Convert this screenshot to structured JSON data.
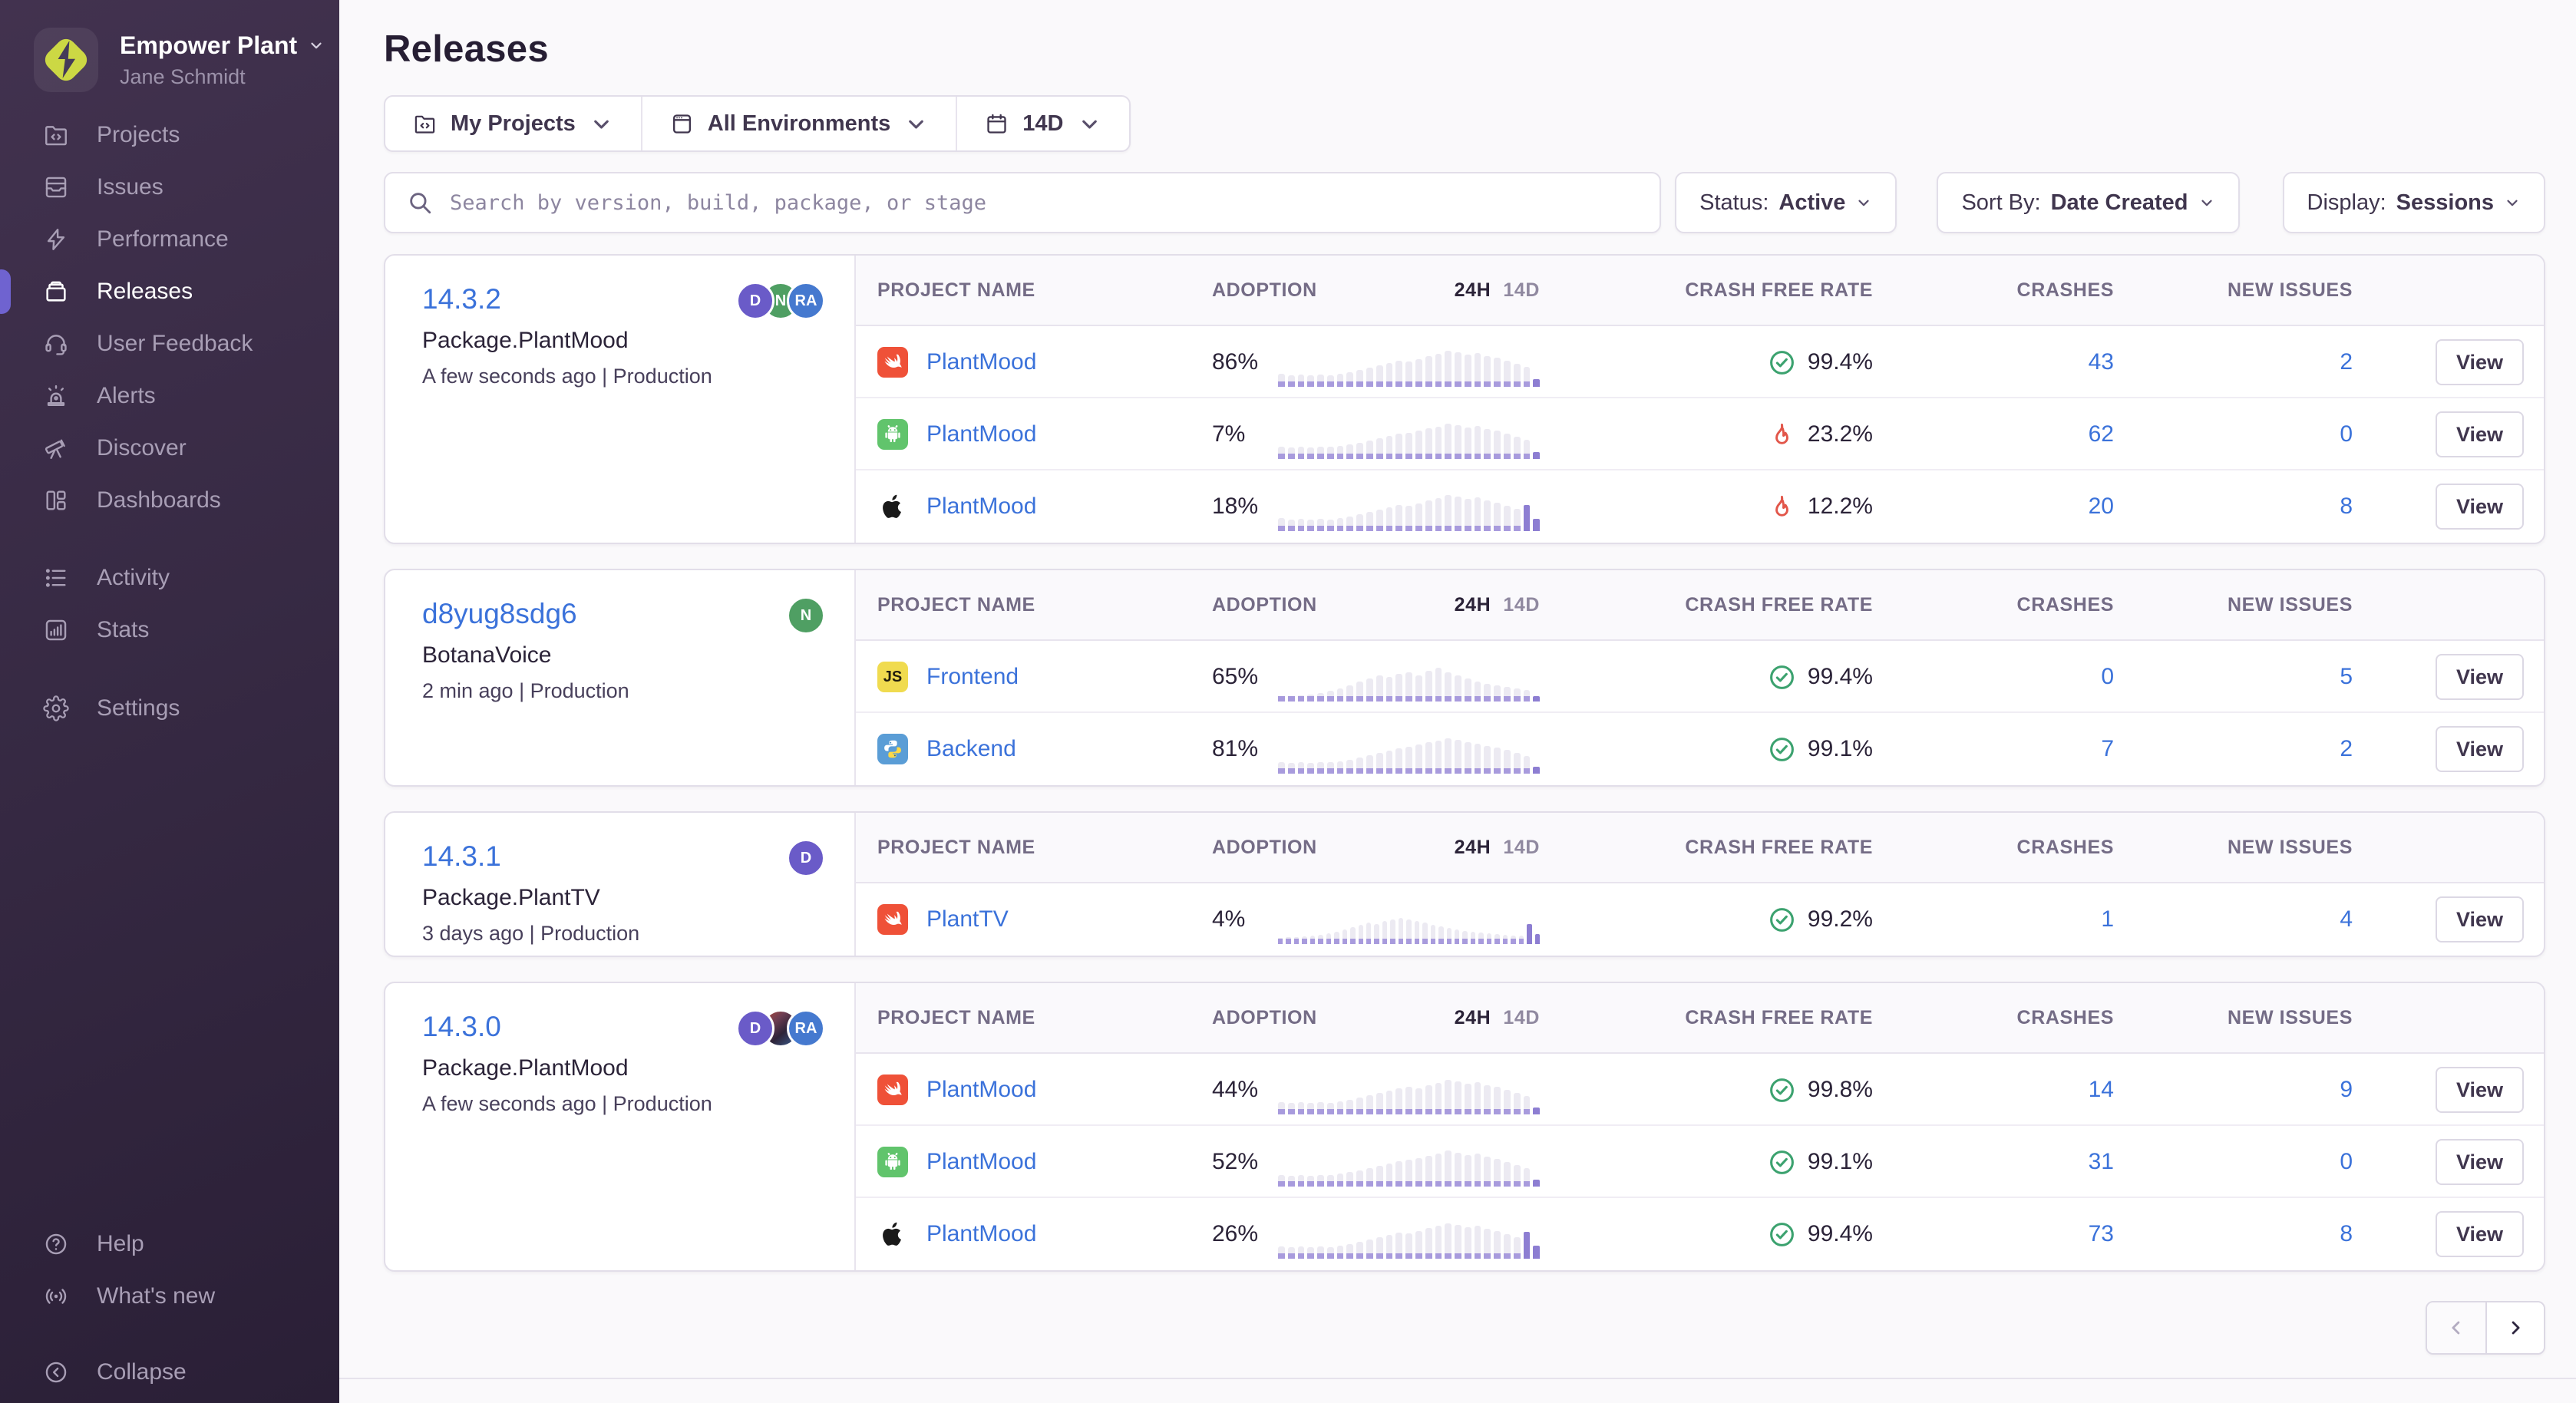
{
  "colors": {
    "accent": "#6f63d0",
    "link": "#3b72da",
    "success": "#3ca26f",
    "danger": "#e2564a",
    "spark_gray": "#eceaf2",
    "spark_purple": "#8d7ed2"
  },
  "sidebar": {
    "org": {
      "name": "Empower Plant",
      "user": "Jane Schmidt"
    },
    "groups": [
      {
        "items": [
          {
            "label": "Projects",
            "icon": "projects",
            "active": false
          },
          {
            "label": "Issues",
            "icon": "issues",
            "active": false
          },
          {
            "label": "Performance",
            "icon": "performance",
            "active": false
          },
          {
            "label": "Releases",
            "icon": "releases",
            "active": true
          },
          {
            "label": "User Feedback",
            "icon": "user-feedback",
            "active": false
          },
          {
            "label": "Alerts",
            "icon": "alerts",
            "active": false
          },
          {
            "label": "Discover",
            "icon": "discover",
            "active": false
          },
          {
            "label": "Dashboards",
            "icon": "dashboards",
            "active": false
          }
        ]
      },
      {
        "items": [
          {
            "label": "Activity",
            "icon": "activity",
            "active": false
          },
          {
            "label": "Stats",
            "icon": "stats",
            "active": false
          }
        ]
      },
      {
        "items": [
          {
            "label": "Settings",
            "icon": "settings",
            "active": false
          }
        ]
      },
      {
        "items": [
          {
            "label": "Help",
            "icon": "help",
            "active": false
          },
          {
            "label": "What's new",
            "icon": "whats-new",
            "active": false
          }
        ]
      },
      {
        "items": [
          {
            "label": "Collapse",
            "icon": "collapse",
            "active": false
          }
        ]
      }
    ]
  },
  "header": {
    "title": "Releases"
  },
  "filter_bar": {
    "project": {
      "icon": "projects",
      "label": "My Projects"
    },
    "environment": {
      "icon": "window",
      "label": "All Environments"
    },
    "period": {
      "icon": "calendar",
      "label": "14D"
    }
  },
  "search": {
    "icon": "search",
    "placeholder": "Search by version, build, package, or stage",
    "value": ""
  },
  "controls": [
    {
      "label": "Status:",
      "value": "Active"
    },
    {
      "label": "Sort By:",
      "value": "Date Created"
    },
    {
      "label": "Display:",
      "value": "Sessions"
    }
  ],
  "table": {
    "col_project": "PROJECT NAME",
    "col_adoption": "ADOPTION",
    "col_24h": "24H",
    "col_14d": "14D",
    "col_crash_free": "CRASH FREE RATE",
    "col_crashes": "CRASHES",
    "col_new_issues": "NEW ISSUES",
    "view_label": "View"
  },
  "badges": {
    "js": "JS"
  },
  "releases": [
    {
      "version": "14.3.2",
      "package": "Package.PlantMood",
      "meta": "A few seconds ago | Production",
      "avatars": [
        {
          "initials": "D",
          "color": "#6a5bc8"
        },
        {
          "initials": "N",
          "color": "#4f9f63"
        },
        {
          "initials": "RA",
          "color": "#4579cf"
        }
      ],
      "projects": [
        {
          "icon": "swift",
          "name": "PlantMood",
          "adoption": "86%",
          "spark": {
            "heights": [
              10,
              8,
              9,
              8,
              9,
              8,
              10,
              12,
              15,
              18,
              21,
              24,
              27,
              26,
              29,
              33,
              36,
              40,
              38,
              35,
              37,
              33,
              31,
              27,
              23,
              19,
              3
            ],
            "purple_tail": 1
          },
          "crash_ok": true,
          "crash_free": "99.4%",
          "crashes": "43",
          "new_issues": "2"
        },
        {
          "icon": "android",
          "name": "PlantMood",
          "adoption": "7%",
          "spark": {
            "heights": [
              9,
              8,
              9,
              8,
              9,
              9,
              10,
              12,
              14,
              17,
              20,
              23,
              26,
              27,
              30,
              33,
              35,
              39,
              37,
              34,
              36,
              32,
              30,
              26,
              22,
              18,
              2
            ],
            "purple_tail": 1
          },
          "crash_ok": false,
          "crash_free": "23.2%",
          "crashes": "62",
          "new_issues": "0"
        },
        {
          "icon": "apple",
          "name": "PlantMood",
          "adoption": "18%",
          "spark": {
            "heights": [
              10,
              8,
              9,
              8,
              9,
              8,
              10,
              12,
              15,
              18,
              21,
              24,
              27,
              26,
              29,
              33,
              36,
              40,
              38,
              35,
              37,
              33,
              30,
              26,
              22,
              27,
              9
            ],
            "purple_tail": 2
          },
          "crash_ok": false,
          "crash_free": "12.2%",
          "crashes": "20",
          "new_issues": "8"
        }
      ]
    },
    {
      "version": "d8yug8sdg6",
      "package": "BotanaVoice",
      "meta": "2 min ago | Production",
      "avatars": [
        {
          "initials": "N",
          "color": "#4f9f63"
        }
      ],
      "projects": [
        {
          "icon": "js",
          "name": "Frontend",
          "adoption": "65%",
          "spark": {
            "heights": [
              0,
              0,
              1,
              2,
              4,
              7,
              10,
              14,
              19,
              23,
              27,
              25,
              29,
              31,
              27,
              33,
              37,
              31,
              27,
              23,
              19,
              16,
              14,
              12,
              10,
              8,
              0
            ],
            "purple_tail": 1
          },
          "crash_ok": true,
          "crash_free": "99.4%",
          "crashes": "0",
          "new_issues": "5"
        },
        {
          "icon": "python",
          "name": "Backend",
          "adoption": "81%",
          "spark": {
            "heights": [
              8,
              7,
              8,
              7,
              8,
              8,
              9,
              11,
              14,
              17,
              20,
              23,
              26,
              28,
              31,
              34,
              36,
              39,
              37,
              34,
              32,
              29,
              27,
              24,
              20,
              16,
              2
            ],
            "purple_tail": 1
          },
          "crash_ok": true,
          "crash_free": "99.1%",
          "crashes": "7",
          "new_issues": "2"
        }
      ]
    },
    {
      "version": "14.3.1",
      "package": "Package.PlantTV",
      "meta": "3 days ago | Production",
      "avatars": [
        {
          "initials": "D",
          "color": "#6a5bc8"
        }
      ],
      "projects": [
        {
          "icon": "swift",
          "name": "PlantTV",
          "adoption": "4%",
          "spark": {
            "heights": [
              1,
              2,
              2,
              3,
              4,
              5,
              7,
              9,
              12,
              15,
              18,
              21,
              19,
              23,
              25,
              27,
              25,
              23,
              21,
              18,
              16,
              14,
              12,
              10,
              9,
              8,
              7,
              6,
              5,
              4,
              4,
              19,
              6
            ],
            "purple_tail": 2
          },
          "crash_ok": true,
          "crash_free": "99.2%",
          "crashes": "1",
          "new_issues": "4"
        }
      ]
    },
    {
      "version": "14.3.0",
      "package": "Package.PlantMood",
      "meta": "A few seconds ago | Production",
      "avatars": [
        {
          "initials": "D",
          "color": "#6a5bc8"
        },
        {
          "initials": "",
          "color": "#3a2f47",
          "photo": true
        },
        {
          "initials": "RA",
          "color": "#4579cf"
        }
      ],
      "projects": [
        {
          "icon": "swift",
          "name": "PlantMood",
          "adoption": "44%",
          "spark": {
            "heights": [
              9,
              8,
              9,
              8,
              9,
              8,
              10,
              12,
              15,
              18,
              21,
              24,
              27,
              29,
              27,
              31,
              34,
              38,
              36,
              33,
              35,
              31,
              29,
              25,
              21,
              17,
              2
            ],
            "purple_tail": 1
          },
          "crash_ok": true,
          "crash_free": "99.8%",
          "crashes": "14",
          "new_issues": "9"
        },
        {
          "icon": "android",
          "name": "PlantMood",
          "adoption": "52%",
          "spark": {
            "heights": [
              8,
              7,
              8,
              7,
              8,
              8,
              10,
              12,
              14,
              17,
              20,
              23,
              26,
              28,
              30,
              33,
              36,
              40,
              37,
              34,
              36,
              32,
              29,
              25,
              21,
              17,
              2
            ],
            "purple_tail": 1
          },
          "crash_ok": true,
          "crash_free": "99.1%",
          "crashes": "31",
          "new_issues": "0"
        },
        {
          "icon": "apple",
          "name": "PlantMood",
          "adoption": "26%",
          "spark": {
            "heights": [
              9,
              8,
              9,
              8,
              9,
              8,
              10,
              12,
              15,
              18,
              21,
              24,
              27,
              26,
              29,
              33,
              36,
              39,
              37,
              34,
              36,
              32,
              29,
              25,
              21,
              28,
              10
            ],
            "purple_tail": 2
          },
          "crash_ok": true,
          "crash_free": "99.4%",
          "crashes": "73",
          "new_issues": "8"
        }
      ]
    }
  ],
  "pagination": {
    "prev_icon": "chevron-left",
    "next_icon": "chevron-right",
    "prev_enabled": false,
    "next_enabled": true
  }
}
